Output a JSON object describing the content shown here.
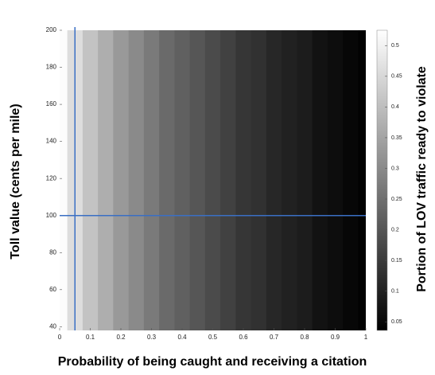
{
  "chart_data": {
    "type": "heatmap",
    "x_label": "Probability of being caught and receiving a citation",
    "y_label": "Toll value (cents per mile)",
    "colorbar_label": "Portion of LOV traffic ready to violate",
    "x": [
      0,
      0.05,
      0.1,
      0.15,
      0.2,
      0.25,
      0.3,
      0.35,
      0.4,
      0.45,
      0.5,
      0.55,
      0.6,
      0.65,
      0.7,
      0.75,
      0.8,
      0.85,
      0.9,
      0.95,
      1
    ],
    "values": [
      0.52,
      0.46,
      0.41,
      0.37,
      0.33,
      0.3,
      0.27,
      0.24,
      0.22,
      0.2,
      0.18,
      0.16,
      0.14,
      0.13,
      0.11,
      0.1,
      0.09,
      0.07,
      0.06,
      0.05,
      0.04
    ],
    "xlim": [
      0,
      1
    ],
    "xticks": [
      0,
      0.1,
      0.2,
      0.3,
      0.4,
      0.5,
      0.6,
      0.7,
      0.8,
      0.9,
      1
    ],
    "ylim": [
      38,
      200
    ],
    "yticks": [
      40,
      60,
      80,
      100,
      120,
      140,
      160,
      180,
      200
    ],
    "clim": [
      0.036,
      0.525
    ],
    "cticks": [
      0.05,
      0.1,
      0.15,
      0.2,
      0.25,
      0.3,
      0.35,
      0.4,
      0.45,
      0.5
    ],
    "colormap": "gray",
    "reference_lines": {
      "x": 0.05,
      "y": 100,
      "color": "#3a6fc4"
    }
  }
}
